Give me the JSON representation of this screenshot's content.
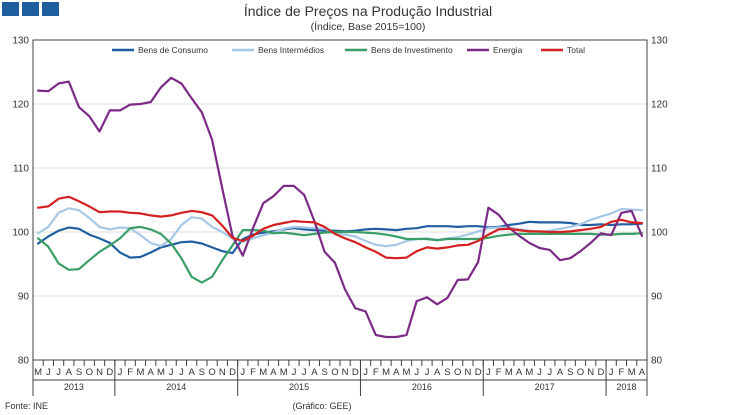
{
  "chart_data": {
    "type": "line",
    "title": "Índice de Preços na Produção Industrial",
    "subtitle": "(Índice, Base 2015=100)",
    "source": "Fonte: INE",
    "credit": "(Gráfico: GEE)",
    "ylim": [
      80,
      130
    ],
    "yticks": [
      80,
      90,
      100,
      110,
      120,
      130
    ],
    "grid": true,
    "legend_position": "top",
    "months": [
      "M",
      "J",
      "J",
      "A",
      "S",
      "O",
      "N",
      "D",
      "J",
      "F",
      "M",
      "A",
      "M",
      "J",
      "J",
      "A",
      "S",
      "O",
      "N",
      "D",
      "J",
      "F",
      "M",
      "A",
      "M",
      "J",
      "J",
      "A",
      "S",
      "O",
      "N",
      "D",
      "J",
      "F",
      "M",
      "A",
      "M",
      "J",
      "J",
      "A",
      "S",
      "O",
      "N",
      "D",
      "J",
      "F",
      "M",
      "A",
      "M",
      "J",
      "J",
      "A",
      "S",
      "O",
      "N",
      "D",
      "J",
      "F",
      "M",
      "A"
    ],
    "years": [
      {
        "label": "2013",
        "start": 0,
        "end": 7
      },
      {
        "label": "2014",
        "start": 8,
        "end": 19
      },
      {
        "label": "2015",
        "start": 20,
        "end": 31
      },
      {
        "label": "2016",
        "start": 32,
        "end": 43
      },
      {
        "label": "2017",
        "start": 44,
        "end": 55
      },
      {
        "label": "2018",
        "start": 56,
        "end": 59
      }
    ],
    "series": [
      {
        "name": "Bens de Consumo",
        "color": "#1f5fa0",
        "values": [
          98.2,
          99.3,
          100.2,
          100.7,
          100.5,
          99.6,
          99.0,
          98.3,
          96.8,
          96.0,
          96.1,
          96.8,
          97.6,
          98.0,
          98.4,
          98.5,
          98.2,
          97.6,
          97.0,
          96.7,
          98.9,
          99.6,
          99.9,
          100.1,
          100.4,
          100.6,
          100.4,
          100.3,
          100.2,
          100.2,
          100.1,
          100.2,
          100.4,
          100.5,
          100.4,
          100.3,
          100.5,
          100.6,
          100.9,
          100.9,
          100.9,
          100.8,
          100.9,
          100.9,
          100.7,
          100.8,
          101.1,
          101.3,
          101.6,
          101.5,
          101.5,
          101.5,
          101.4,
          101.1,
          101.1,
          101.2,
          101.1,
          101.2,
          101.2,
          101.3
        ]
      },
      {
        "name": "Bens Intermédios",
        "color": "#a6c8e6",
        "values": [
          99.8,
          100.8,
          103.0,
          103.7,
          103.4,
          102.2,
          100.8,
          100.4,
          100.7,
          100.6,
          99.5,
          98.3,
          97.8,
          98.9,
          101.1,
          102.3,
          102.1,
          100.8,
          100.0,
          99.0,
          98.5,
          99.0,
          99.5,
          99.9,
          100.5,
          100.8,
          100.7,
          100.6,
          100.5,
          99.8,
          99.6,
          99.3,
          98.6,
          98.0,
          97.8,
          98.0,
          98.6,
          98.9,
          99.0,
          98.8,
          99.0,
          99.2,
          99.6,
          100.1,
          100.6,
          100.7,
          100.7,
          100.4,
          100.2,
          100.0,
          100.2,
          100.5,
          100.8,
          101.2,
          101.9,
          102.4,
          102.9,
          103.6,
          103.5,
          103.4
        ]
      },
      {
        "name": "Bens de Investimento",
        "color": "#3a9e66",
        "values": [
          99.0,
          97.7,
          95.1,
          94.1,
          94.2,
          95.6,
          96.9,
          97.9,
          99.0,
          100.6,
          100.8,
          100.4,
          99.7,
          98.2,
          95.9,
          93.0,
          92.1,
          93.0,
          95.6,
          97.9,
          100.3,
          100.3,
          100.2,
          99.8,
          99.9,
          99.7,
          99.5,
          99.7,
          99.9,
          100.0,
          100.0,
          100.0,
          99.9,
          99.8,
          99.6,
          99.3,
          98.9,
          98.9,
          98.9,
          98.7,
          98.9,
          98.9,
          98.9,
          98.9,
          99.1,
          99.4,
          99.6,
          99.7,
          99.7,
          99.7,
          99.7,
          99.7,
          99.7,
          99.7,
          99.7,
          99.6,
          99.6,
          99.7,
          99.7,
          99.8
        ]
      },
      {
        "name": "Energia",
        "color": "#7b2a86",
        "values": [
          122.1,
          122.0,
          123.2,
          123.5,
          119.5,
          118.1,
          115.7,
          119.0,
          119.0,
          119.9,
          120.0,
          120.3,
          122.6,
          124.1,
          123.2,
          120.9,
          118.7,
          114.4,
          106.8,
          99.4,
          96.3,
          100.6,
          104.5,
          105.6,
          107.2,
          107.2,
          105.8,
          101.7,
          96.9,
          95.2,
          91.0,
          88.1,
          87.6,
          83.9,
          83.6,
          83.6,
          83.9,
          89.2,
          89.8,
          88.7,
          89.7,
          92.5,
          92.6,
          95.3,
          103.8,
          102.7,
          100.7,
          99.4,
          98.3,
          97.5,
          97.2,
          95.6,
          95.9,
          97.0,
          98.3,
          99.8,
          99.5,
          103.0,
          103.3,
          99.4
        ]
      },
      {
        "name": "Total",
        "color": "#d42020",
        "values": [
          103.8,
          104.0,
          105.2,
          105.5,
          104.8,
          104.0,
          103.1,
          103.2,
          103.2,
          103.0,
          102.9,
          102.6,
          102.4,
          102.6,
          103.0,
          103.3,
          103.1,
          102.6,
          101.0,
          99.1,
          98.6,
          99.4,
          100.5,
          101.1,
          101.4,
          101.7,
          101.6,
          101.5,
          100.8,
          99.7,
          99.0,
          98.4,
          97.6,
          96.9,
          96.0,
          95.9,
          96.0,
          97.0,
          97.6,
          97.4,
          97.6,
          97.9,
          98.0,
          98.6,
          99.6,
          100.4,
          100.5,
          100.3,
          100.1,
          100.1,
          100.0,
          100.0,
          100.1,
          100.3,
          100.5,
          100.8,
          101.6,
          101.9,
          101.5,
          101.4
        ]
      }
    ]
  }
}
